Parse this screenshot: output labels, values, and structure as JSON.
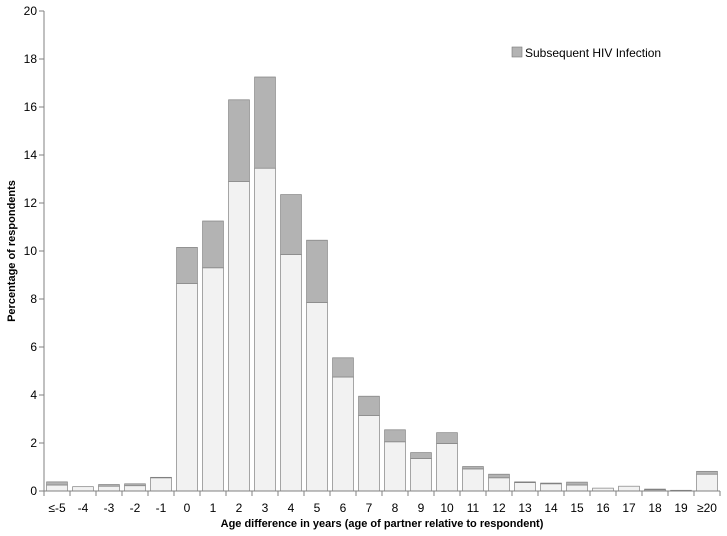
{
  "chart_data": {
    "type": "bar",
    "stacked": true,
    "categories": [
      "≤-5",
      "-4",
      "-3",
      "-2",
      "-1",
      "0",
      "1",
      "2",
      "3",
      "4",
      "5",
      "6",
      "7",
      "8",
      "9",
      "10",
      "11",
      "12",
      "13",
      "14",
      "15",
      "16",
      "17",
      "18",
      "19",
      "≥20"
    ],
    "series": [
      {
        "name": "",
        "color": "#f2f2f2",
        "values": [
          0.25,
          0.18,
          0.2,
          0.22,
          0.55,
          8.65,
          9.3,
          12.9,
          13.45,
          9.85,
          7.85,
          4.75,
          3.15,
          2.05,
          1.35,
          1.98,
          0.92,
          0.55,
          0.35,
          0.3,
          0.25,
          0.12,
          0.2,
          0.05,
          0.03,
          0.7
        ]
      },
      {
        "name": "Subsequent HIV Infection",
        "color": "#b3b3b3",
        "values": [
          0.13,
          0.0,
          0.07,
          0.08,
          0.02,
          1.5,
          1.95,
          3.4,
          3.8,
          2.5,
          2.6,
          0.8,
          0.8,
          0.5,
          0.25,
          0.45,
          0.1,
          0.15,
          0.03,
          0.03,
          0.12,
          0.0,
          0.0,
          0.03,
          0.0,
          0.12
        ]
      }
    ],
    "xlabel": "Age difference in years (age of partner relative to respondent)",
    "ylabel": "Percentage of respondents",
    "ylim": [
      0,
      20
    ],
    "yticks": [
      "0",
      "2",
      "4",
      "6",
      "8",
      "10",
      "12",
      "14",
      "16",
      "18",
      "20"
    ],
    "legend_position": "top-right",
    "grid": false
  }
}
